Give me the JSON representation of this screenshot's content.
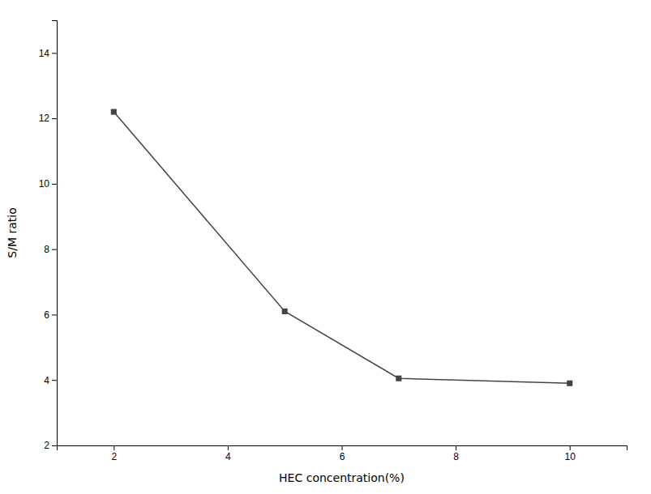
{
  "chart_data": {
    "type": "line",
    "x": [
      2,
      5,
      7,
      10
    ],
    "values": [
      12.2,
      6.1,
      4.05,
      3.9
    ],
    "xlabel": "HEC concentration(%)",
    "ylabel": "S/M ratio",
    "xlim": [
      1,
      11
    ],
    "ylim": [
      2,
      15
    ],
    "xticks": [
      2,
      4,
      6,
      8,
      10
    ],
    "yticks": [
      2,
      4,
      6,
      8,
      10,
      12,
      14
    ],
    "color": "#444444",
    "marker": "square",
    "grid": false
  }
}
